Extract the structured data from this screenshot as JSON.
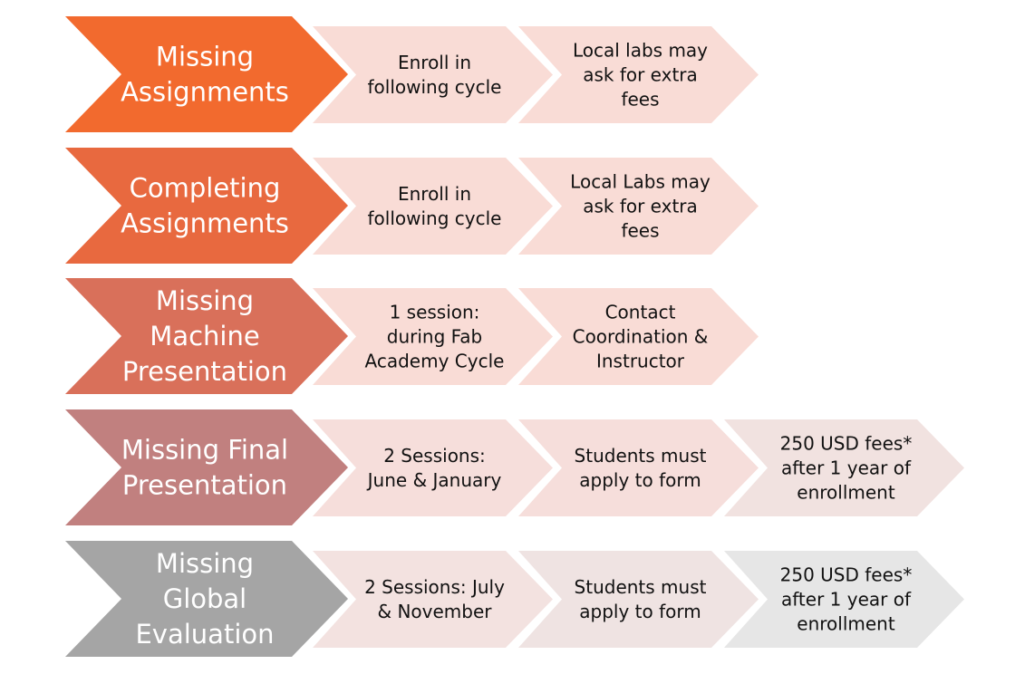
{
  "rows": [
    {
      "label": [
        "Missing",
        "Assignments"
      ],
      "color": "#f26a2e",
      "steps": [
        {
          "lines": [
            "Enroll in",
            "following cycle"
          ],
          "color": "#f9dcd6"
        },
        {
          "lines": [
            "Local labs may",
            "ask for extra",
            "fees"
          ],
          "color": "#f9dcd6"
        }
      ]
    },
    {
      "label": [
        "Completing",
        "Assignments"
      ],
      "color": "#e8693f",
      "steps": [
        {
          "lines": [
            "Enroll in",
            "following cycle"
          ],
          "color": "#f9dcd6"
        },
        {
          "lines": [
            "Local Labs may",
            "ask for extra",
            "fees"
          ],
          "color": "#f9dcd6"
        }
      ]
    },
    {
      "label": [
        "Missing",
        "Machine",
        "Presentation"
      ],
      "color": "#d9705a",
      "steps": [
        {
          "lines": [
            "1 session:",
            "during Fab",
            "Academy Cycle"
          ],
          "color": "#f9dcd6"
        },
        {
          "lines": [
            "Contact",
            "Coordination &",
            "Instructor"
          ],
          "color": "#f9dcd6"
        }
      ]
    },
    {
      "label": [
        "Missing Final",
        "Presentation"
      ],
      "color": "#c1807f",
      "steps": [
        {
          "lines": [
            "2 Sessions:",
            "June & January"
          ],
          "color": "#f6dedb"
        },
        {
          "lines": [
            "Students must",
            "apply to form"
          ],
          "color": "#f6dedb"
        },
        {
          "lines": [
            "250 USD fees*",
            "after 1 year of",
            "enrollment"
          ],
          "color": "#f1e2e0"
        }
      ]
    },
    {
      "label": [
        "Missing",
        "Global",
        "Evaluation"
      ],
      "color": "#a5a5a5",
      "steps": [
        {
          "lines": [
            "2 Sessions: July",
            "& November"
          ],
          "color": "#f3e2e0"
        },
        {
          "lines": [
            "Students must",
            "apply to form"
          ],
          "color": "#efe3e2"
        },
        {
          "lines": [
            "250 USD fees*",
            "after 1 year of",
            "enrollment"
          ],
          "color": "#e6e6e6"
        }
      ]
    }
  ]
}
